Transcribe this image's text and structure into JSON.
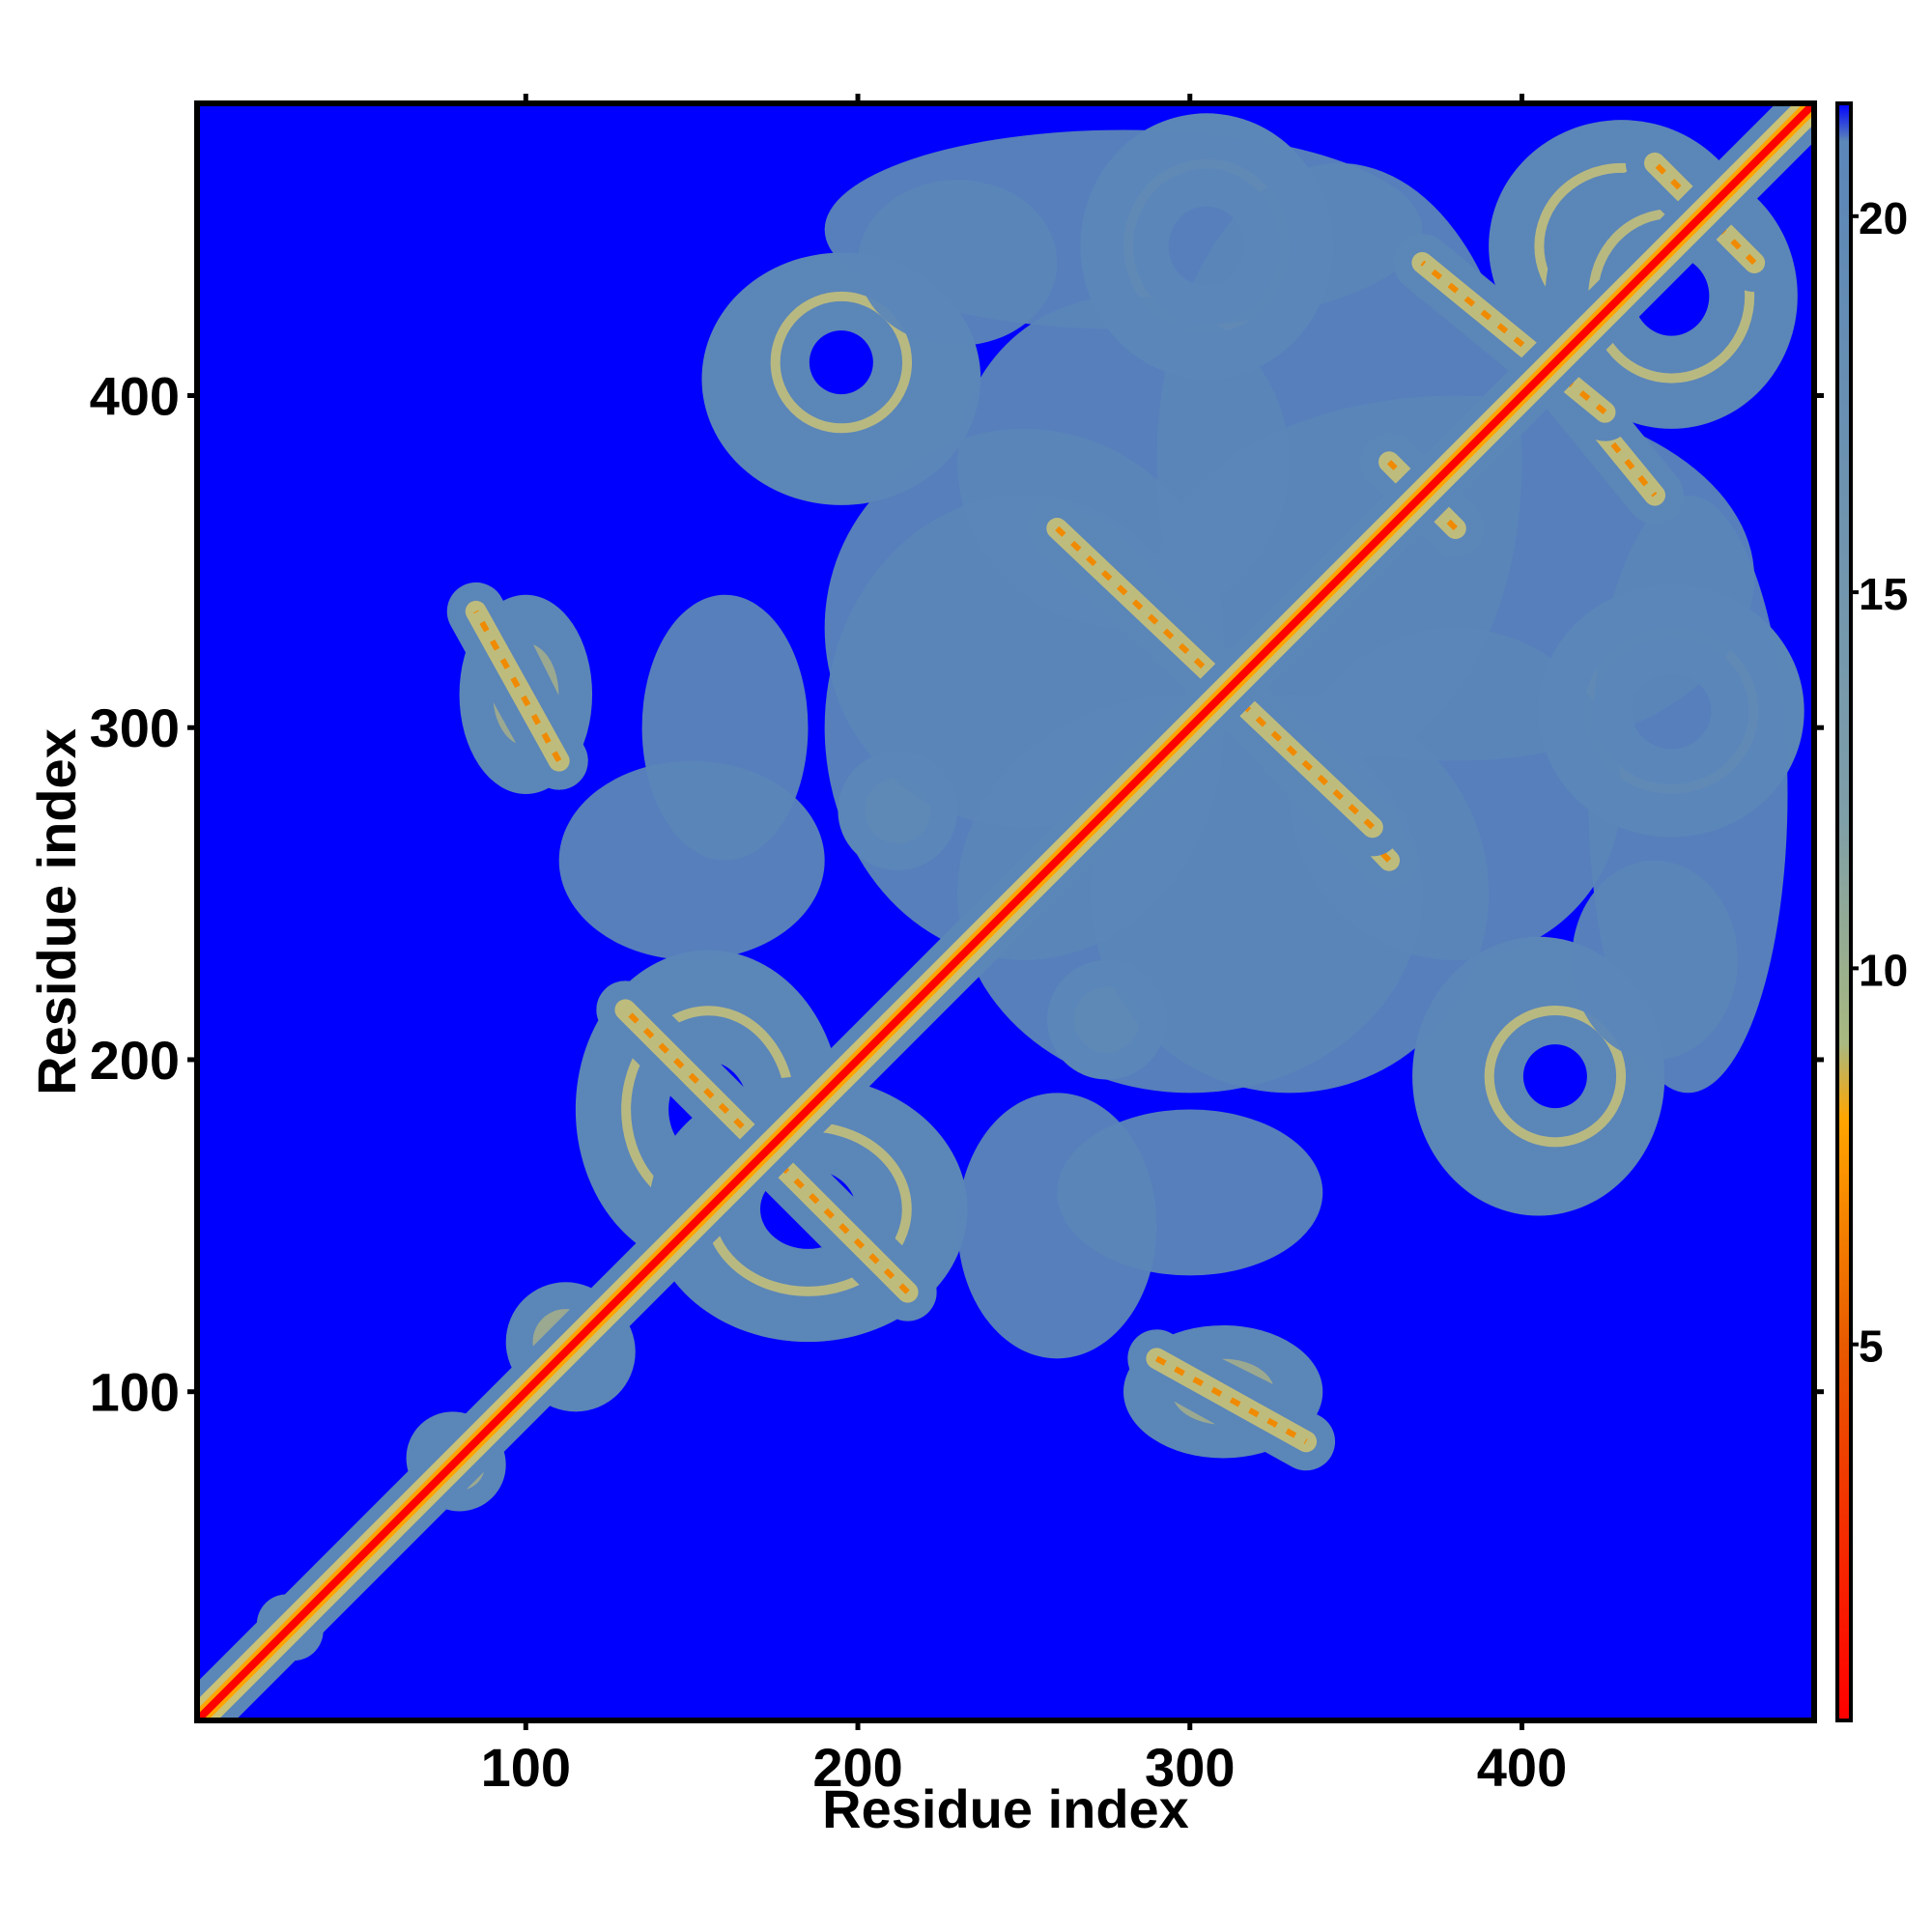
{
  "chart_data": {
    "type": "heatmap",
    "title": "",
    "xlabel": "Residue index",
    "ylabel": "Residue index",
    "xlim": [
      1,
      488
    ],
    "ylim": [
      1,
      488
    ],
    "xticks": [
      100,
      200,
      300,
      400
    ],
    "yticks": [
      100,
      200,
      300,
      400
    ],
    "xtick_labels": [
      "100",
      "200",
      "300",
      "400"
    ],
    "ytick_labels": [
      "100",
      "200",
      "300",
      "400"
    ],
    "colorbar": {
      "range": [
        0,
        21.5
      ],
      "ticks": [
        5,
        10,
        15,
        20
      ],
      "tick_labels": [
        "5",
        "10",
        "15",
        "20"
      ],
      "colors": [
        {
          "value": 0,
          "color": "#ff0000"
        },
        {
          "value": 5,
          "color": "#e85a00"
        },
        {
          "value": 8,
          "color": "#ffa500"
        },
        {
          "value": 9,
          "color": "#a8b880"
        },
        {
          "value": 12,
          "color": "#7e9ea8"
        },
        {
          "value": 21,
          "color": "#5b86b8"
        },
        {
          "value": 21.5,
          "color": "#0000ff"
        }
      ]
    },
    "background_color": "#0000ff",
    "contact_color": "#5b86b8",
    "diagonal_color": "#ff0000",
    "diagonal": {
      "from": 1,
      "to": 488
    },
    "contact_regions": [
      {
        "x": 155,
        "y": 185,
        "rx": 40,
        "ry": 48,
        "kind": "loop"
      },
      {
        "x": 212,
        "y": 275,
        "rx": 18,
        "ry": 18,
        "kind": "blob"
      },
      {
        "x": 195,
        "y": 405,
        "rx": 42,
        "ry": 38,
        "kind": "loop"
      },
      {
        "x": 305,
        "y": 445,
        "rx": 38,
        "ry": 40,
        "kind": "loop"
      },
      {
        "x": 430,
        "y": 445,
        "rx": 40,
        "ry": 38,
        "kind": "loop"
      },
      {
        "x": 410,
        "y": 195,
        "rx": 32,
        "ry": 32,
        "kind": "loop"
      },
      {
        "x": 310,
        "y": 100,
        "rx": 30,
        "ry": 20,
        "kind": "blob"
      },
      {
        "x": 100,
        "y": 310,
        "rx": 18,
        "ry": 28,
        "kind": "blob"
      },
      {
        "x": 345,
        "y": 380,
        "rx": 55,
        "ry": 90,
        "kind": "region"
      },
      {
        "x": 300,
        "y": 250,
        "rx": 70,
        "ry": 60,
        "kind": "region"
      },
      {
        "x": 250,
        "y": 330,
        "rx": 60,
        "ry": 60,
        "kind": "region"
      },
      {
        "x": 450,
        "y": 280,
        "rx": 30,
        "ry": 90,
        "kind": "region"
      },
      {
        "x": 380,
        "y": 280,
        "rx": 50,
        "ry": 50,
        "kind": "region"
      },
      {
        "x": 260,
        "y": 150,
        "rx": 30,
        "ry": 40,
        "kind": "region"
      },
      {
        "x": 160,
        "y": 300,
        "rx": 25,
        "ry": 40,
        "kind": "region"
      },
      {
        "x": 230,
        "y": 440,
        "rx": 30,
        "ry": 25,
        "kind": "region"
      },
      {
        "x": 115,
        "y": 112,
        "rx": 18,
        "ry": 18,
        "kind": "blob"
      },
      {
        "x": 78,
        "y": 80,
        "rx": 14,
        "ry": 14,
        "kind": "blob"
      },
      {
        "x": 28,
        "y": 30,
        "rx": 9,
        "ry": 9,
        "kind": "blob"
      }
    ],
    "anti_diagonals": [
      {
        "from": [
          130,
          215
        ],
        "to": [
          215,
          130
        ]
      },
      {
        "from": [
          270,
          355
        ],
        "to": [
          360,
          260
        ]
      },
      {
        "from": [
          360,
          380
        ],
        "to": [
          380,
          360
        ]
      },
      {
        "from": [
          395,
          425
        ],
        "to": [
          440,
          370
        ]
      },
      {
        "from": [
          440,
          470
        ],
        "to": [
          470,
          440
        ]
      },
      {
        "from": [
          90,
          330
        ],
        "to": [
          110,
          290
        ]
      },
      {
        "from": [
          290,
          110
        ],
        "to": [
          335,
          85
        ]
      }
    ]
  }
}
